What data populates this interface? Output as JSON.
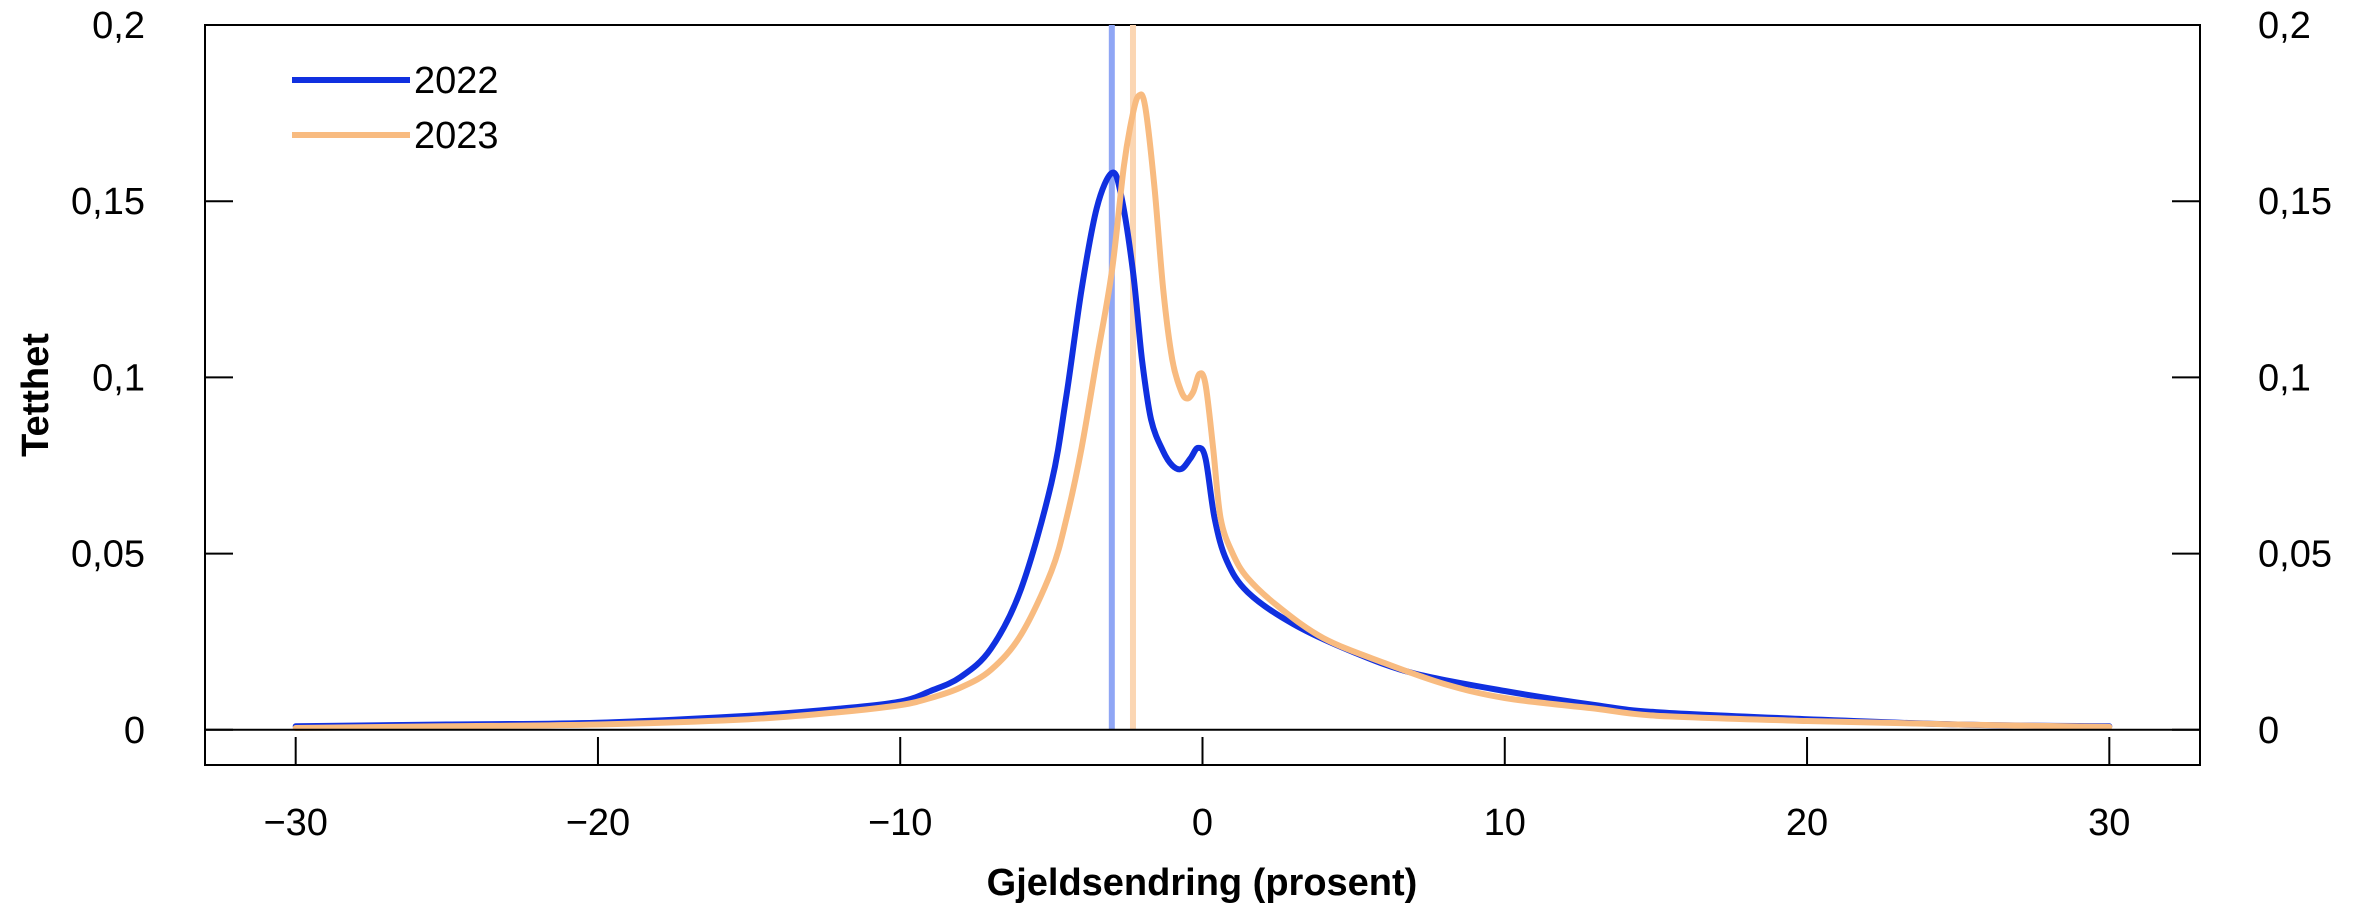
{
  "chart_data": {
    "type": "line",
    "title": "",
    "xlabel": "Gjeldsendring (prosent)",
    "ylabel": "Tetthet",
    "xlim": [
      -33,
      33
    ],
    "ylim": [
      -0.01,
      0.2
    ],
    "x_ticks": [
      -30,
      -20,
      -10,
      0,
      10,
      20,
      30
    ],
    "x_tick_labels": [
      "−30",
      "−20",
      "−10",
      "0",
      "10",
      "20",
      "30"
    ],
    "y_ticks": [
      0,
      0.05,
      0.1,
      0.15,
      0.2
    ],
    "y_tick_labels": [
      "0",
      "0,05",
      "0,1",
      "0,15",
      "0,2"
    ],
    "right_axis_ticks": true,
    "zero_line": true,
    "grid": false,
    "legend_position": "top-left",
    "series": [
      {
        "name": "2022",
        "color": "#1030e0",
        "reference_line_x": -3.0,
        "reference_line_color": "#8fa6f5",
        "points": [
          [
            -30,
            0.001
          ],
          [
            -25,
            0.0015
          ],
          [
            -20,
            0.002
          ],
          [
            -15,
            0.004
          ],
          [
            -12,
            0.006
          ],
          [
            -10,
            0.008
          ],
          [
            -9,
            0.011
          ],
          [
            -8,
            0.015
          ],
          [
            -7,
            0.023
          ],
          [
            -6,
            0.04
          ],
          [
            -5,
            0.07
          ],
          [
            -4.5,
            0.095
          ],
          [
            -4,
            0.125
          ],
          [
            -3.5,
            0.148
          ],
          [
            -3,
            0.158
          ],
          [
            -2.7,
            0.152
          ],
          [
            -2.3,
            0.13
          ],
          [
            -2,
            0.105
          ],
          [
            -1.7,
            0.088
          ],
          [
            -1.3,
            0.079
          ],
          [
            -1,
            0.075
          ],
          [
            -0.7,
            0.074
          ],
          [
            -0.4,
            0.077
          ],
          [
            -0.15,
            0.08
          ],
          [
            0.1,
            0.077
          ],
          [
            0.4,
            0.06
          ],
          [
            0.8,
            0.048
          ],
          [
            1.5,
            0.039
          ],
          [
            3,
            0.03
          ],
          [
            5,
            0.022
          ],
          [
            7,
            0.016
          ],
          [
            10,
            0.011
          ],
          [
            13,
            0.007
          ],
          [
            15,
            0.005
          ],
          [
            20,
            0.003
          ],
          [
            25,
            0.0015
          ],
          [
            30,
            0.001
          ]
        ]
      },
      {
        "name": "2023",
        "color": "#f8bb80",
        "reference_line_x": -2.3,
        "reference_line_color": "#fbd6b3",
        "points": [
          [
            -30,
            0.0005
          ],
          [
            -25,
            0.001
          ],
          [
            -20,
            0.0015
          ],
          [
            -15,
            0.003
          ],
          [
            -12,
            0.005
          ],
          [
            -10,
            0.007
          ],
          [
            -9,
            0.009
          ],
          [
            -8,
            0.012
          ],
          [
            -7,
            0.017
          ],
          [
            -6,
            0.027
          ],
          [
            -5,
            0.045
          ],
          [
            -4.5,
            0.06
          ],
          [
            -4,
            0.08
          ],
          [
            -3.5,
            0.105
          ],
          [
            -3,
            0.13
          ],
          [
            -2.6,
            0.16
          ],
          [
            -2.3,
            0.175
          ],
          [
            -2.1,
            0.18
          ],
          [
            -1.9,
            0.177
          ],
          [
            -1.6,
            0.155
          ],
          [
            -1.3,
            0.125
          ],
          [
            -1,
            0.105
          ],
          [
            -0.7,
            0.096
          ],
          [
            -0.5,
            0.094
          ],
          [
            -0.3,
            0.096
          ],
          [
            -0.1,
            0.101
          ],
          [
            0.1,
            0.098
          ],
          [
            0.35,
            0.08
          ],
          [
            0.6,
            0.06
          ],
          [
            1,
            0.05
          ],
          [
            1.5,
            0.043
          ],
          [
            2.5,
            0.035
          ],
          [
            4,
            0.026
          ],
          [
            6,
            0.019
          ],
          [
            8,
            0.013
          ],
          [
            10,
            0.009
          ],
          [
            13,
            0.006
          ],
          [
            15,
            0.004
          ],
          [
            20,
            0.0025
          ],
          [
            25,
            0.0015
          ],
          [
            30,
            0.0008
          ]
        ]
      }
    ]
  }
}
